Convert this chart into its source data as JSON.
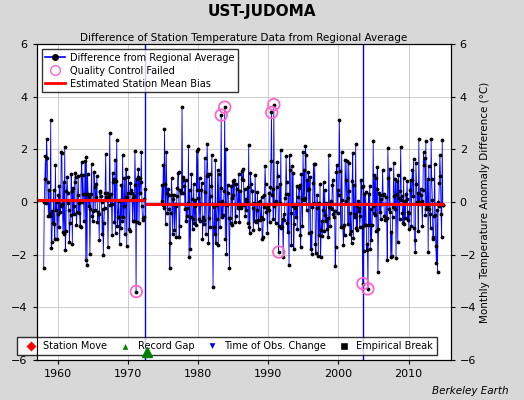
{
  "title": "UST-JUDOMA",
  "subtitle": "Difference of Station Temperature Data from Regional Average",
  "ylabel": "Monthly Temperature Anomaly Difference (°C)",
  "xlabel_credit": "Berkeley Earth",
  "ylim": [
    -6,
    6
  ],
  "xlim": [
    1957,
    2016
  ],
  "yticks": [
    -6,
    -4,
    -2,
    0,
    2,
    4,
    6
  ],
  "xticks": [
    1960,
    1970,
    1980,
    1990,
    2000,
    2010
  ],
  "bias_segments": [
    {
      "x_start": 1957,
      "x_end": 1972.5,
      "bias": 0.08
    },
    {
      "x_start": 1972.5,
      "x_end": 2015,
      "bias": -0.08
    }
  ],
  "gap_years": [
    1972.5
  ],
  "obs_change_years": [
    2003.5
  ],
  "background_color": "#d8d8d8",
  "plot_bg_color": "#ffffff",
  "line_color": "#0000ff",
  "bias_color": "#ff0000",
  "qc_color": "#ff66cc",
  "grid_color": "#bbbbbb",
  "seed": 42,
  "seg1_start": 1958.0,
  "seg1_end": 1972.5,
  "seg2_start": 1974.8,
  "seg2_end": 2015.0
}
